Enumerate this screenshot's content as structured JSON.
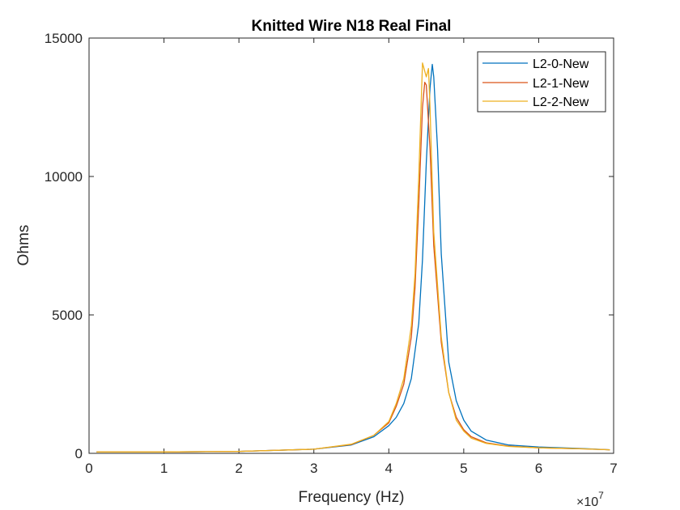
{
  "chart_data": {
    "type": "line",
    "title": "Knitted Wire N18 Real Final",
    "xlabel": "Frequency (Hz)",
    "ylabel": "Ohms",
    "x_exponent_label": "×10",
    "x_exponent_power": "7",
    "xlim": [
      0,
      7
    ],
    "ylim": [
      0,
      15000
    ],
    "xticks": [
      0,
      1,
      2,
      3,
      4,
      5,
      6,
      7
    ],
    "yticks": [
      0,
      5000,
      10000,
      15000
    ],
    "grid": false,
    "legend_position": "top-right",
    "series": [
      {
        "name": "L2-0-New",
        "color": "#0072BD",
        "x": [
          0.1,
          1,
          2,
          3,
          3.5,
          3.8,
          4.0,
          4.1,
          4.2,
          4.3,
          4.4,
          4.45,
          4.5,
          4.55,
          4.58,
          4.6,
          4.65,
          4.7,
          4.8,
          4.9,
          5.0,
          5.1,
          5.3,
          5.6,
          6.0,
          6.3,
          6.6,
          6.95
        ],
        "y": [
          50,
          50,
          70,
          150,
          300,
          600,
          1000,
          1300,
          1800,
          2700,
          4700,
          7000,
          10500,
          13200,
          14050,
          13600,
          11000,
          7200,
          3300,
          1900,
          1200,
          800,
          480,
          300,
          230,
          200,
          170,
          130
        ]
      },
      {
        "name": "L2-1-New",
        "color": "#D95319",
        "x": [
          0.1,
          1,
          2,
          3,
          3.5,
          3.8,
          4.0,
          4.1,
          4.2,
          4.3,
          4.35,
          4.4,
          4.45,
          4.48,
          4.5,
          4.55,
          4.6,
          4.7,
          4.8,
          4.9,
          5.0,
          5.1,
          5.3,
          5.6,
          6.0,
          6.3,
          6.6,
          6.95
        ],
        "y": [
          50,
          50,
          70,
          150,
          320,
          650,
          1100,
          1700,
          2500,
          4200,
          6000,
          9000,
          12500,
          13400,
          13300,
          11000,
          7500,
          4000,
          2200,
          1300,
          850,
          600,
          380,
          260,
          200,
          180,
          160,
          130
        ]
      },
      {
        "name": "L2-2-New",
        "color": "#EDB120",
        "x": [
          0.1,
          1,
          2,
          3,
          3.5,
          3.8,
          4.0,
          4.1,
          4.2,
          4.3,
          4.35,
          4.4,
          4.45,
          4.5,
          4.53,
          4.55,
          4.6,
          4.7,
          4.8,
          4.9,
          5.0,
          5.1,
          5.3,
          5.6,
          6.0,
          6.3,
          6.6,
          6.95
        ],
        "y": [
          50,
          50,
          70,
          150,
          330,
          650,
          1150,
          1800,
          2700,
          4600,
          6500,
          10000,
          14100,
          13600,
          13900,
          12500,
          8000,
          4200,
          2200,
          1200,
          800,
          550,
          360,
          250,
          200,
          180,
          160,
          130
        ]
      }
    ]
  }
}
